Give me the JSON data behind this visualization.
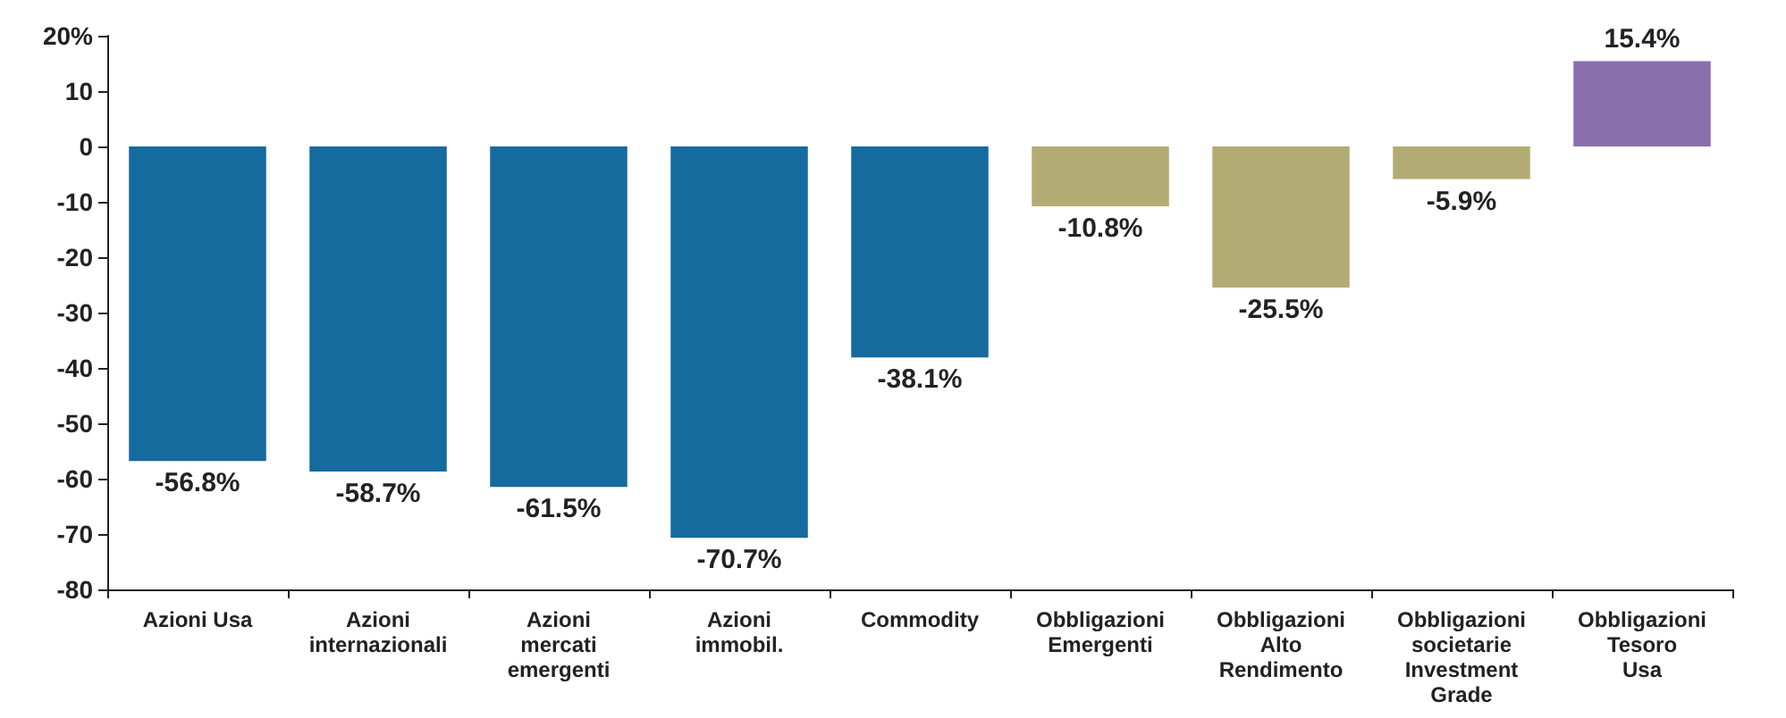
{
  "chart_data": {
    "type": "bar",
    "categories": [
      "Azioni Usa",
      "Azioni\ninternazionali",
      "Azioni\nmercati\nemergenti",
      "Azioni\nimmobil.",
      "Commodity",
      "Obbligazioni\nEmergenti",
      "Obbligazioni\nAlto\nRendimento",
      "Obbligazioni\nsocietarie\nInvestment\nGrade",
      "Obbligazioni\nTesoro\nUsa"
    ],
    "values": [
      -56.8,
      -58.7,
      -61.5,
      -70.7,
      -38.1,
      -10.8,
      -25.5,
      -5.9,
      15.4
    ],
    "colors": [
      "#156a9e",
      "#156a9e",
      "#156a9e",
      "#156a9e",
      "#156a9e",
      "#b3ab74",
      "#b3ab74",
      "#b3ab74",
      "#8a6fae"
    ],
    "value_labels": [
      "-56.8%",
      "-58.7%",
      "-61.5%",
      "-70.7%",
      "-38.1%",
      "-10.8%",
      "-25.5%",
      "-5.9%",
      "15.4%"
    ],
    "ylim": [
      -80,
      20
    ],
    "yticks": [
      -80,
      -70,
      -60,
      -50,
      -40,
      -30,
      -20,
      -10,
      0,
      10,
      {
        "value": 20,
        "label": "20%"
      }
    ],
    "grid": false
  }
}
